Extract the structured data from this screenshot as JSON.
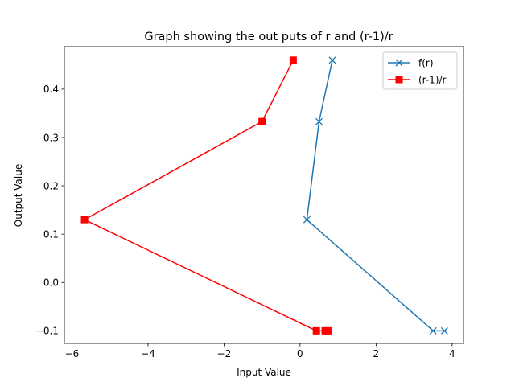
{
  "chart_data": {
    "type": "line",
    "title": "Graph showing the out puts of r and (r-1)/r",
    "xlabel": "Input Value",
    "ylabel": "Output Value",
    "xlim": [
      -6.2,
      4.3
    ],
    "ylim": [
      -0.126,
      0.488
    ],
    "xticks": [
      -6,
      -4,
      -2,
      0,
      2,
      4
    ],
    "xtick_labels": [
      "−6",
      "−4",
      "−2",
      "0",
      "2",
      "4"
    ],
    "yticks": [
      -0.1,
      0.0,
      0.1,
      0.2,
      0.3,
      0.4
    ],
    "ytick_labels": [
      "−0.1",
      "0.0",
      "0.1",
      "0.2",
      "0.3",
      "0.4"
    ],
    "grid": false,
    "legend_position": "upper right",
    "series": [
      {
        "name": "f(r)",
        "color": "#1f77b4",
        "marker": "x",
        "points": [
          {
            "x": 3.8,
            "y": -0.1
          },
          {
            "x": 3.5,
            "y": -0.1
          },
          {
            "x": 0.18,
            "y": 0.13
          },
          {
            "x": 0.5,
            "y": 0.333
          },
          {
            "x": 0.85,
            "y": 0.46
          }
        ]
      },
      {
        "name": "(r-1)/r",
        "color": "#ff0000",
        "marker": "square",
        "points": [
          {
            "x": 0.74,
            "y": -0.1
          },
          {
            "x": 0.66,
            "y": -0.1
          },
          {
            "x": 0.43,
            "y": -0.1
          },
          {
            "x": -5.67,
            "y": 0.13
          },
          {
            "x": -1.0,
            "y": 0.333
          },
          {
            "x": -0.18,
            "y": 0.46
          }
        ]
      }
    ]
  }
}
